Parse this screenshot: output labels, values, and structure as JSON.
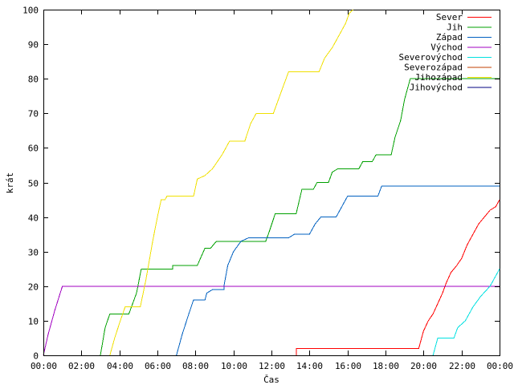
{
  "chart_data": {
    "type": "line",
    "title": "",
    "xlabel": "Čas",
    "ylabel": "krát",
    "xlim": [
      0,
      24
    ],
    "ylim": [
      0,
      100
    ],
    "xticks": [
      {
        "value": 0,
        "label": "00:00"
      },
      {
        "value": 2,
        "label": "02:00"
      },
      {
        "value": 4,
        "label": "04:00"
      },
      {
        "value": 6,
        "label": "06:00"
      },
      {
        "value": 8,
        "label": "08:00"
      },
      {
        "value": 10,
        "label": "10:00"
      },
      {
        "value": 12,
        "label": "12:00"
      },
      {
        "value": 14,
        "label": "14:00"
      },
      {
        "value": 16,
        "label": "16:00"
      },
      {
        "value": 18,
        "label": "18:00"
      },
      {
        "value": 20,
        "label": "20:00"
      },
      {
        "value": 22,
        "label": "22:00"
      },
      {
        "value": 24,
        "label": "00:00"
      }
    ],
    "yticks": [
      0,
      10,
      20,
      30,
      40,
      50,
      60,
      70,
      80,
      90,
      100
    ],
    "grid": false,
    "legend_position": "top-right",
    "series": [
      {
        "name": "Sever",
        "color": "#ff0000",
        "points": [
          [
            13.3,
            0
          ],
          [
            13.3,
            2
          ],
          [
            19.75,
            2
          ],
          [
            20.0,
            7
          ],
          [
            20.25,
            10
          ],
          [
            20.5,
            12
          ],
          [
            20.75,
            15
          ],
          [
            21.0,
            18
          ],
          [
            21.2,
            21
          ],
          [
            21.45,
            24
          ],
          [
            21.75,
            26
          ],
          [
            22.0,
            28
          ],
          [
            22.3,
            32
          ],
          [
            22.6,
            35
          ],
          [
            22.9,
            38
          ],
          [
            23.2,
            40
          ],
          [
            23.5,
            42
          ],
          [
            23.8,
            43
          ],
          [
            24.0,
            45
          ]
        ]
      },
      {
        "name": "Jih",
        "color": "#00a000",
        "points": [
          [
            3.0,
            0
          ],
          [
            3.25,
            8
          ],
          [
            3.5,
            12
          ],
          [
            4.5,
            12
          ],
          [
            4.9,
            18
          ],
          [
            5.15,
            25
          ],
          [
            6.8,
            25
          ],
          [
            6.8,
            26
          ],
          [
            8.1,
            26
          ],
          [
            8.5,
            31
          ],
          [
            8.8,
            31
          ],
          [
            9.1,
            33
          ],
          [
            11.7,
            33
          ],
          [
            11.9,
            36
          ],
          [
            12.2,
            41
          ],
          [
            13.3,
            41
          ],
          [
            13.6,
            48
          ],
          [
            14.2,
            48
          ],
          [
            14.4,
            50
          ],
          [
            15.0,
            50
          ],
          [
            15.2,
            53
          ],
          [
            15.5,
            54
          ],
          [
            16.6,
            54
          ],
          [
            16.8,
            56
          ],
          [
            17.3,
            56
          ],
          [
            17.5,
            58
          ],
          [
            18.3,
            58
          ],
          [
            18.5,
            63
          ],
          [
            18.8,
            68
          ],
          [
            19.0,
            74
          ],
          [
            19.3,
            80
          ],
          [
            24.0,
            80
          ]
        ]
      },
      {
        "name": "Západ",
        "color": "#0060c0",
        "points": [
          [
            7.0,
            0
          ],
          [
            7.3,
            6
          ],
          [
            7.65,
            12
          ],
          [
            7.9,
            16
          ],
          [
            8.5,
            16
          ],
          [
            8.6,
            18
          ],
          [
            8.9,
            19
          ],
          [
            9.5,
            19
          ],
          [
            9.5,
            20
          ],
          [
            9.7,
            26
          ],
          [
            10.0,
            30
          ],
          [
            10.4,
            33
          ],
          [
            10.8,
            34
          ],
          [
            12.9,
            34
          ],
          [
            13.2,
            35
          ],
          [
            14.0,
            35
          ],
          [
            14.3,
            38
          ],
          [
            14.6,
            40
          ],
          [
            15.4,
            40
          ],
          [
            15.7,
            43
          ],
          [
            16.0,
            46
          ],
          [
            17.6,
            46
          ],
          [
            17.8,
            49
          ],
          [
            24.0,
            49
          ]
        ]
      },
      {
        "name": "Východ",
        "color": "#a000c0",
        "points": [
          [
            0.0,
            0
          ],
          [
            0.25,
            6
          ],
          [
            0.6,
            13
          ],
          [
            1.0,
            20
          ],
          [
            24.0,
            20
          ]
        ]
      },
      {
        "name": "Severovýchod",
        "color": "#00e0e0",
        "points": [
          [
            20.5,
            0
          ],
          [
            20.75,
            5
          ],
          [
            21.6,
            5
          ],
          [
            21.8,
            8
          ],
          [
            22.2,
            10
          ],
          [
            22.6,
            14
          ],
          [
            23.0,
            17
          ],
          [
            23.5,
            20
          ],
          [
            23.8,
            23
          ],
          [
            24.0,
            25
          ]
        ]
      },
      {
        "name": "Severozápad",
        "color": "#c04000",
        "points": []
      },
      {
        "name": "Jihozápad",
        "color": "#f0e000",
        "points": [
          [
            3.5,
            0
          ],
          [
            3.75,
            5
          ],
          [
            4.05,
            10
          ],
          [
            4.3,
            14
          ],
          [
            5.1,
            14
          ],
          [
            5.4,
            22
          ],
          [
            5.75,
            33
          ],
          [
            6.0,
            40
          ],
          [
            6.2,
            45
          ],
          [
            6.4,
            45
          ],
          [
            6.5,
            46
          ],
          [
            7.9,
            46
          ],
          [
            8.1,
            51
          ],
          [
            8.5,
            52
          ],
          [
            8.9,
            54
          ],
          [
            9.4,
            58
          ],
          [
            9.8,
            62
          ],
          [
            10.6,
            62
          ],
          [
            10.9,
            67
          ],
          [
            11.2,
            70
          ],
          [
            12.1,
            70
          ],
          [
            12.5,
            76
          ],
          [
            12.9,
            82
          ],
          [
            14.5,
            82
          ],
          [
            14.8,
            86
          ],
          [
            15.2,
            89
          ],
          [
            15.6,
            93
          ],
          [
            15.9,
            96
          ],
          [
            16.1,
            99
          ],
          [
            16.3,
            100
          ]
        ]
      },
      {
        "name": "Jihovýchod",
        "color": "#000080",
        "points": []
      }
    ]
  }
}
